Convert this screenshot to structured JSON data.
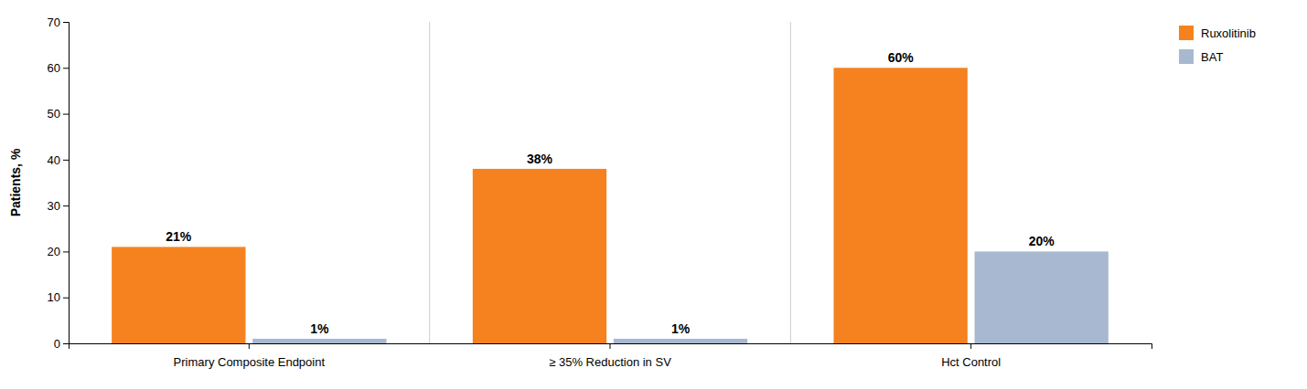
{
  "chart_data": {
    "type": "bar",
    "y_label": "Patients, %",
    "categories": [
      "Primary Composite Endpoint",
      "≥ 35% Reduction in SV",
      "Hct Control"
    ],
    "series": [
      {
        "name": "Ruxolitinib",
        "color": "#F5821F",
        "values": [
          21,
          38,
          60
        ],
        "value_labels": [
          "21%",
          "38%",
          "60%"
        ]
      },
      {
        "name": "BAT",
        "color": "#A8B8D0",
        "values": [
          1,
          1,
          20
        ],
        "value_labels": [
          "1%",
          "1%",
          "20%"
        ]
      }
    ],
    "ylim": [
      0,
      70
    ],
    "yticks": [
      0,
      10,
      20,
      30,
      40,
      50,
      60,
      70
    ],
    "grid": false,
    "legend": "upper right",
    "data_labels": true
  }
}
